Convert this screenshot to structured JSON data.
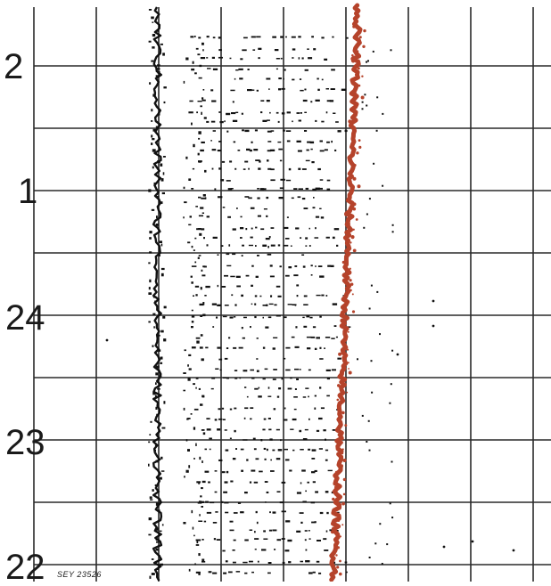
{
  "record": {
    "sheet_id": "SEY 23526"
  },
  "time_axis": {
    "labels": [
      "2",
      "1",
      "24",
      "23",
      "22"
    ]
  },
  "colors": {
    "grid": "#2a2a2a",
    "ink": "#111111",
    "trace": "#b5432b",
    "paper": "#ffffff"
  }
}
